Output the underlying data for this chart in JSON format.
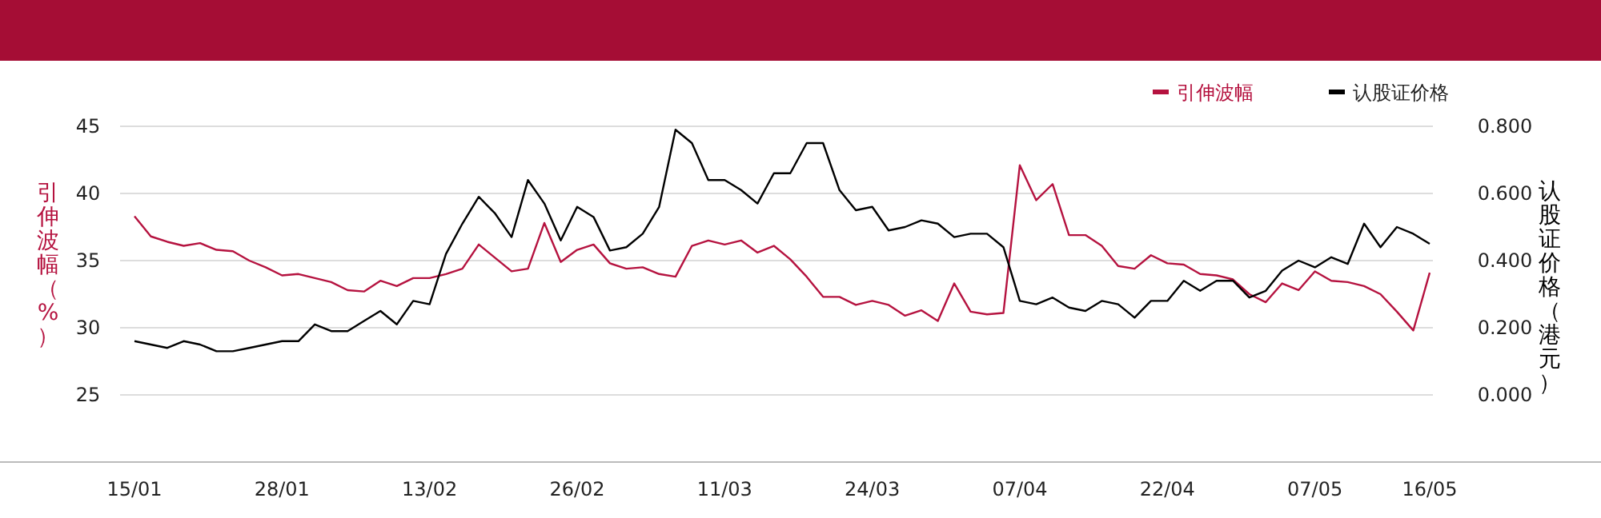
{
  "chart_data": {
    "type": "line",
    "ylabel": "引伸波幅（%）",
    "y2label": "认股证价格（港元）",
    "categories": [
      "15/01",
      null,
      null,
      null,
      null,
      null,
      null,
      null,
      null,
      "28/01",
      null,
      null,
      null,
      null,
      null,
      null,
      null,
      null,
      "13/02",
      null,
      null,
      null,
      null,
      null,
      null,
      null,
      null,
      "26/02",
      null,
      null,
      null,
      null,
      null,
      null,
      null,
      null,
      "11/03",
      null,
      null,
      null,
      null,
      null,
      null,
      null,
      null,
      "24/03",
      null,
      null,
      null,
      null,
      null,
      null,
      null,
      null,
      "07/04",
      null,
      null,
      null,
      null,
      null,
      null,
      null,
      null,
      "22/04",
      null,
      null,
      null,
      null,
      null,
      null,
      null,
      null,
      "07/05",
      null,
      null,
      null,
      null,
      null,
      null,
      "16/05"
    ],
    "series": [
      {
        "name": "引伸波幅",
        "color": "#b5123f",
        "values": [
          38.3,
          36.8,
          36.4,
          36.1,
          36.3,
          35.8,
          35.7,
          35.0,
          34.5,
          33.9,
          34.0,
          33.7,
          33.4,
          32.8,
          32.7,
          33.5,
          33.1,
          33.7,
          33.7,
          34.0,
          34.4,
          36.2,
          35.2,
          34.2,
          34.4,
          37.8,
          34.9,
          35.8,
          36.2,
          34.8,
          34.4,
          34.5,
          34.0,
          33.8,
          36.1,
          36.5,
          36.2,
          36.5,
          35.6,
          36.1,
          35.1,
          33.8,
          32.3,
          32.3,
          31.7,
          32.0,
          31.7,
          30.9,
          31.3,
          30.5,
          33.3,
          31.2,
          31.0,
          31.1,
          42.1,
          39.5,
          40.7,
          36.9,
          36.9,
          36.1,
          34.6,
          34.4,
          35.4,
          34.8,
          34.7,
          34.0,
          33.9,
          33.6,
          32.5,
          31.9,
          33.3,
          32.8,
          34.2,
          33.5,
          33.4,
          33.1,
          32.5,
          31.2,
          29.8,
          34.1
        ]
      },
      {
        "name": "认股证价格",
        "color": "#000000",
        "axis": "y2",
        "values": [
          0.16,
          0.15,
          0.14,
          0.16,
          0.15,
          0.13,
          0.13,
          0.14,
          0.15,
          0.16,
          0.16,
          0.21,
          0.19,
          0.19,
          0.22,
          0.25,
          0.21,
          0.28,
          0.27,
          0.42,
          0.51,
          0.59,
          0.54,
          0.47,
          0.64,
          0.57,
          0.46,
          0.56,
          0.53,
          0.43,
          0.44,
          0.48,
          0.56,
          0.79,
          0.75,
          0.64,
          0.64,
          0.61,
          0.57,
          0.66,
          0.66,
          0.75,
          0.75,
          0.61,
          0.55,
          0.56,
          0.49,
          0.5,
          0.52,
          0.51,
          0.47,
          0.48,
          0.48,
          0.44,
          0.28,
          0.27,
          0.29,
          0.26,
          0.25,
          0.28,
          0.27,
          0.23,
          0.28,
          0.28,
          0.34,
          0.31,
          0.34,
          0.34,
          0.29,
          0.31,
          0.37,
          0.4,
          0.38,
          0.41,
          0.39,
          0.51,
          0.44,
          0.5,
          0.48,
          0.45
        ]
      }
    ],
    "ylim": [
      20,
      45
    ],
    "yticks": [
      25,
      30,
      35,
      40,
      45
    ],
    "y2lim": [
      -0.2,
      0.8
    ],
    "y2ticks": [
      {
        "value": 0,
        "label": "0.000"
      },
      {
        "value": 0.2,
        "label": "0.200"
      },
      {
        "value": 0.4,
        "label": "0.400"
      },
      {
        "value": 0.6,
        "label": "0.600"
      },
      {
        "value": 0.8,
        "label": "0.800"
      }
    ],
    "grid": "y",
    "legend": "top right",
    "line_style": "solid",
    "marker": "none"
  }
}
